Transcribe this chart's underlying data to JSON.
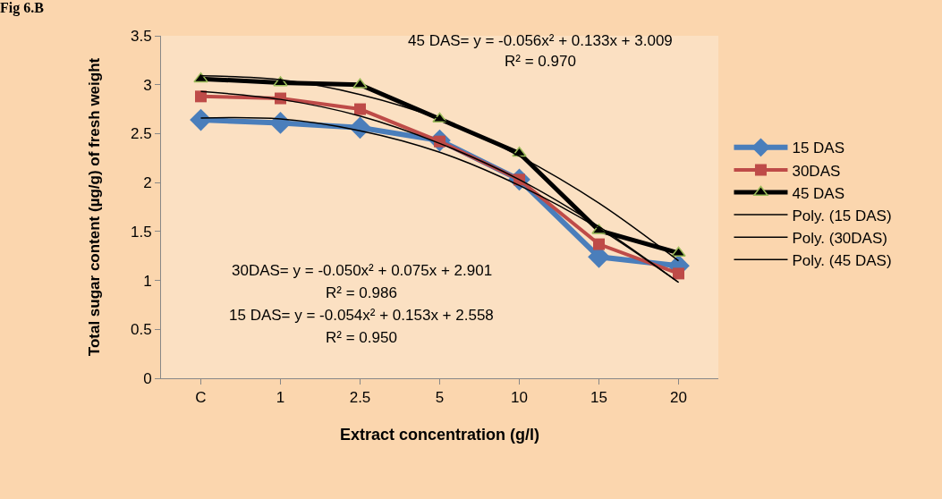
{
  "chart_data": {
    "type": "line",
    "title": "Fig 6.B",
    "xlabel": "Extract concentration (g/l)",
    "ylabel": "Total sugar content (µg/g) of fresh weight",
    "categories": [
      "C",
      "1",
      "2.5",
      "5",
      "10",
      "15",
      "20"
    ],
    "ylim": [
      0,
      3.5
    ],
    "yticks": [
      0,
      0.5,
      1,
      1.5,
      2,
      2.5,
      3,
      3.5
    ],
    "grid": false,
    "legend": "right",
    "series": [
      {
        "name": "15 DAS",
        "color": "#4a7ebb",
        "marker": "diamond",
        "values": [
          2.64,
          2.61,
          2.56,
          2.43,
          2.03,
          1.24,
          1.15
        ]
      },
      {
        "name": "30DAS",
        "color": "#be4b48",
        "marker": "square",
        "values": [
          2.88,
          2.86,
          2.75,
          2.42,
          2.03,
          1.37,
          1.07
        ]
      },
      {
        "name": "45 DAS",
        "color": "#000000",
        "marker": "triangle",
        "values": [
          3.06,
          3.02,
          3.0,
          2.65,
          2.3,
          1.51,
          1.28
        ]
      },
      {
        "name": "Poly. (15 DAS)",
        "color": "#000000",
        "marker": "none",
        "values": [
          2.66,
          2.65,
          2.53,
          2.31,
          1.97,
          1.53,
          0.98
        ]
      },
      {
        "name": "Poly. (30DAS)",
        "color": "#000000",
        "marker": "none",
        "values": [
          2.93,
          2.85,
          2.68,
          2.4,
          2.03,
          1.55,
          0.98
        ]
      },
      {
        "name": "Poly. (45 DAS)",
        "color": "#000000",
        "marker": "none",
        "values": [
          3.09,
          3.05,
          2.9,
          2.65,
          2.27,
          1.79,
          1.2
        ]
      }
    ],
    "annotations": [
      "45 DAS= y = -0.056x² + 0.133x + 3.009",
      "R² = 0.970",
      "30DAS= y = -0.050x² + 0.075x + 2.901",
      "R² = 0.986",
      "15 DAS= y = -0.054x² + 0.153x + 2.558",
      "R² = 0.950"
    ]
  }
}
